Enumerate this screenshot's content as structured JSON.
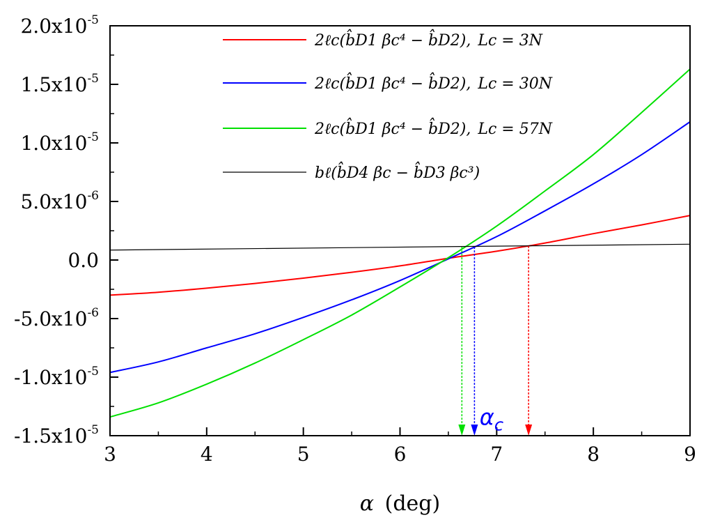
{
  "chart_data": {
    "type": "line",
    "xlabel": {
      "symbol": "α",
      "unit": "(deg)"
    },
    "xlim": [
      3,
      9
    ],
    "ylim": [
      -1.5e-05,
      2e-05
    ],
    "x_ticks": [
      3,
      4,
      5,
      6,
      7,
      8,
      9
    ],
    "x_tick_labels": [
      "3",
      "4",
      "5",
      "6",
      "7",
      "8",
      "9"
    ],
    "y_ticks": [
      {
        "value": 2e-05,
        "mantissa": "2.0x10",
        "exponent": "-5"
      },
      {
        "value": 1.5e-05,
        "mantissa": "1.5x10",
        "exponent": "-5"
      },
      {
        "value": 1e-05,
        "mantissa": "1.0x10",
        "exponent": "-5"
      },
      {
        "value": 5e-06,
        "mantissa": "5.0x10",
        "exponent": "-6"
      },
      {
        "value": 0,
        "mantissa": "0.0",
        "exponent": ""
      },
      {
        "value": -5e-06,
        "mantissa": "-5.0x10",
        "exponent": "-6"
      },
      {
        "value": -1e-05,
        "mantissa": "-1.0x10",
        "exponent": "-5"
      },
      {
        "value": -1.5e-05,
        "mantissa": "-1.5x10",
        "exponent": "-5"
      }
    ],
    "legend_placement": "top-center",
    "series": [
      {
        "name": "2ℓc(b̂D1 βc⁴ − b̂D2), Lc = 3N",
        "legend_formula": "2ℓc(b̂D1 βc⁴ − b̂D2),",
        "legend_param": "Lc = 3N",
        "color": "#ff0000",
        "x": [
          3.0,
          3.5,
          4.0,
          4.5,
          5.0,
          5.5,
          6.0,
          6.5,
          7.0,
          7.5,
          8.0,
          8.5,
          9.0
        ],
        "y": [
          -3e-06,
          -2.75e-06,
          -2.4e-06,
          -2e-06,
          -1.55e-06,
          -1.05e-06,
          -5e-07,
          1.5e-07,
          7.5e-07,
          1.45e-06,
          2.25e-06,
          3e-06,
          3.8e-06
        ]
      },
      {
        "name": "2ℓc(b̂D1 βc⁴ − b̂D2), Lc = 30N",
        "legend_formula": "2ℓc(b̂D1 βc⁴ − b̂D2),",
        "legend_param": "Lc = 30N",
        "color": "#0000ff",
        "x": [
          3.0,
          3.5,
          4.0,
          4.5,
          5.0,
          5.5,
          6.0,
          6.5,
          7.0,
          7.5,
          8.0,
          8.5,
          9.0
        ],
        "y": [
          -9.6e-06,
          -8.7e-06,
          -7.5e-06,
          -6.3e-06,
          -4.9e-06,
          -3.4e-06,
          -1.75e-06,
          1e-07,
          2e-06,
          4.2e-06,
          6.5e-06,
          9e-06,
          1.18e-05
        ]
      },
      {
        "name": "2ℓc(b̂D1 βc⁴ − b̂D2), Lc = 57N",
        "legend_formula": "2ℓc(b̂D1 βc⁴ − b̂D2),",
        "legend_param": "Lc = 57N",
        "color": "#00e000",
        "x": [
          3.0,
          3.5,
          4.0,
          4.5,
          5.0,
          5.5,
          6.0,
          6.5,
          7.0,
          7.5,
          8.0,
          8.5,
          9.0
        ],
        "y": [
          -1.34e-05,
          -1.22e-05,
          -1.06e-05,
          -8.8e-06,
          -6.8e-06,
          -4.7e-06,
          -2.3e-06,
          2e-07,
          2.9e-06,
          5.9e-06,
          9e-06,
          1.26e-05,
          1.63e-05
        ]
      },
      {
        "name": "bℓ(b̂D4 βc − b̂D3 βc³)",
        "legend_formula": "bℓ(b̂D4 βc − b̂D3 βc³)",
        "legend_param": "",
        "color": "#000000",
        "x": [
          3.0,
          9.0
        ],
        "y": [
          8.5e-07,
          1.35e-06
        ]
      }
    ],
    "annotations": [
      {
        "type": "arrow",
        "x": 6.64,
        "y_from": 1.12e-06,
        "y_to": -1.5e-05,
        "color": "#00e000"
      },
      {
        "type": "arrow",
        "x": 6.77,
        "y_from": 1.12e-06,
        "y_to": -1.5e-05,
        "color": "#0000ff"
      },
      {
        "type": "arrow",
        "x": 7.33,
        "y_from": 1.2e-06,
        "y_to": -1.5e-05,
        "color": "#ff0000"
      },
      {
        "type": "text",
        "symbol": "α",
        "subscript": "c",
        "x": 6.78,
        "y": -1.36e-05,
        "color": "#0000ff"
      }
    ]
  }
}
